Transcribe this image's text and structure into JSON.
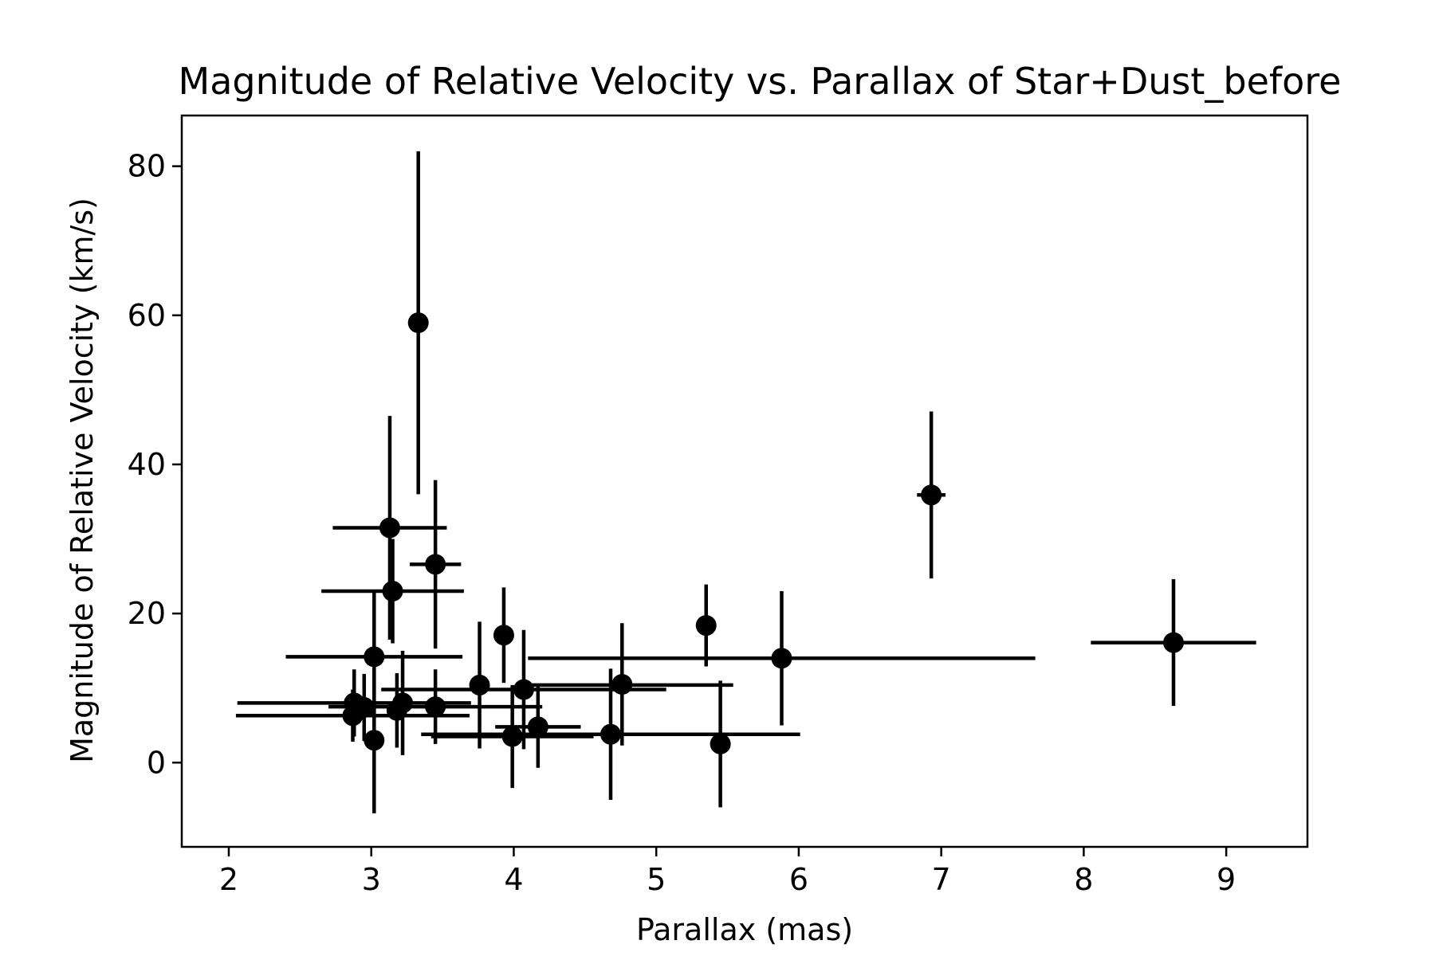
{
  "chart_data": {
    "type": "scatter",
    "title": "Magnitude of Relative Velocity vs. Parallax of Star+Dust_before",
    "xlabel": "Parallax (mas)",
    "ylabel": "Magnitude of Relative Velocity (km/s)",
    "xlim": [
      1.67,
      9.57
    ],
    "ylim": [
      -11.3,
      86.8
    ],
    "xticks": [
      2,
      3,
      4,
      5,
      6,
      7,
      8,
      9
    ],
    "yticks": [
      0,
      20,
      40,
      60,
      80
    ],
    "xtick_labels": [
      "2",
      "3",
      "4",
      "5",
      "6",
      "7",
      "8",
      "9"
    ],
    "ytick_labels": [
      "0",
      "20",
      "40",
      "60",
      "80"
    ],
    "grid": false,
    "color": "#000000",
    "points": [
      {
        "x": 3.33,
        "y": 59.0,
        "xerr_lo": 0.0,
        "xerr_hi": 0.0,
        "yerr_lo": 23.0,
        "yerr_hi": 23.0
      },
      {
        "x": 6.93,
        "y": 35.9,
        "xerr_lo": 0.1,
        "xerr_hi": 0.1,
        "yerr_lo": 11.2,
        "yerr_hi": 11.2
      },
      {
        "x": 3.13,
        "y": 31.5,
        "xerr_lo": 0.4,
        "xerr_hi": 0.4,
        "yerr_lo": 15.0,
        "yerr_hi": 15.0
      },
      {
        "x": 3.45,
        "y": 26.6,
        "xerr_lo": 0.18,
        "xerr_hi": 0.18,
        "yerr_lo": 11.3,
        "yerr_hi": 11.3
      },
      {
        "x": 3.15,
        "y": 23.0,
        "xerr_lo": 0.5,
        "xerr_hi": 0.5,
        "yerr_lo": 7.0,
        "yerr_hi": 7.0
      },
      {
        "x": 5.35,
        "y": 18.4,
        "xerr_lo": 0.0,
        "xerr_hi": 0.0,
        "yerr_lo": 5.5,
        "yerr_hi": 5.5
      },
      {
        "x": 3.93,
        "y": 17.1,
        "xerr_lo": 0.0,
        "xerr_hi": 0.0,
        "yerr_lo": 6.4,
        "yerr_hi": 6.4
      },
      {
        "x": 8.63,
        "y": 16.1,
        "xerr_lo": 0.58,
        "xerr_hi": 0.58,
        "yerr_lo": 8.5,
        "yerr_hi": 8.5
      },
      {
        "x": 3.02,
        "y": 14.2,
        "xerr_lo": 0.62,
        "xerr_hi": 0.62,
        "yerr_lo": 8.6,
        "yerr_hi": 8.6
      },
      {
        "x": 5.88,
        "y": 14.0,
        "xerr_lo": 1.78,
        "xerr_hi": 1.78,
        "yerr_lo": 9.0,
        "yerr_hi": 9.0
      },
      {
        "x": 4.76,
        "y": 10.5,
        "xerr_lo": 0.0,
        "xerr_hi": 0.0,
        "yerr_lo": 8.2,
        "yerr_hi": 8.2
      },
      {
        "x": 3.76,
        "y": 10.4,
        "xerr_lo": 0.0,
        "xerr_hi": 0.0,
        "yerr_lo": 8.5,
        "yerr_hi": 8.5
      },
      {
        "x": 4.07,
        "y": 9.8,
        "xerr_lo": 1.0,
        "xerr_hi": 1.0,
        "yerr_lo": 8.0,
        "yerr_hi": 8.0
      },
      {
        "x": 4.07,
        "y": 10.4,
        "xerr_lo": 0.0,
        "xerr_hi": 1.47,
        "yerr_lo": 0.0,
        "yerr_hi": 0.0
      },
      {
        "x": 2.88,
        "y": 8.0,
        "xerr_lo": 0.82,
        "xerr_hi": 0.82,
        "yerr_lo": 4.5,
        "yerr_hi": 4.5
      },
      {
        "x": 3.22,
        "y": 8.0,
        "xerr_lo": 0.0,
        "xerr_hi": 0.0,
        "yerr_lo": 7.0,
        "yerr_hi": 7.0
      },
      {
        "x": 3.45,
        "y": 7.5,
        "xerr_lo": 0.75,
        "xerr_hi": 0.75,
        "yerr_lo": 5.0,
        "yerr_hi": 5.0
      },
      {
        "x": 3.18,
        "y": 7.0,
        "xerr_lo": 0.0,
        "xerr_hi": 0.0,
        "yerr_lo": 5.0,
        "yerr_hi": 5.0
      },
      {
        "x": 2.87,
        "y": 6.3,
        "xerr_lo": 0.82,
        "xerr_hi": 0.82,
        "yerr_lo": 3.5,
        "yerr_hi": 3.5
      },
      {
        "x": 2.95,
        "y": 7.4,
        "xerr_lo": 0.0,
        "xerr_hi": 0.0,
        "yerr_lo": 4.5,
        "yerr_hi": 4.5
      },
      {
        "x": 4.17,
        "y": 4.8,
        "xerr_lo": 0.3,
        "xerr_hi": 0.3,
        "yerr_lo": 5.5,
        "yerr_hi": 5.5
      },
      {
        "x": 4.68,
        "y": 3.8,
        "xerr_lo": 1.33,
        "xerr_hi": 1.33,
        "yerr_lo": 8.8,
        "yerr_hi": 8.8
      },
      {
        "x": 3.99,
        "y": 3.5,
        "xerr_lo": 0.57,
        "xerr_hi": 0.57,
        "yerr_lo": 6.9,
        "yerr_hi": 6.9
      },
      {
        "x": 3.02,
        "y": 3.0,
        "xerr_lo": 0.0,
        "xerr_hi": 0.0,
        "yerr_lo": 9.8,
        "yerr_hi": 9.8
      },
      {
        "x": 5.45,
        "y": 2.5,
        "xerr_lo": 0.0,
        "xerr_hi": 0.0,
        "yerr_lo": 8.5,
        "yerr_hi": 8.5
      }
    ]
  }
}
